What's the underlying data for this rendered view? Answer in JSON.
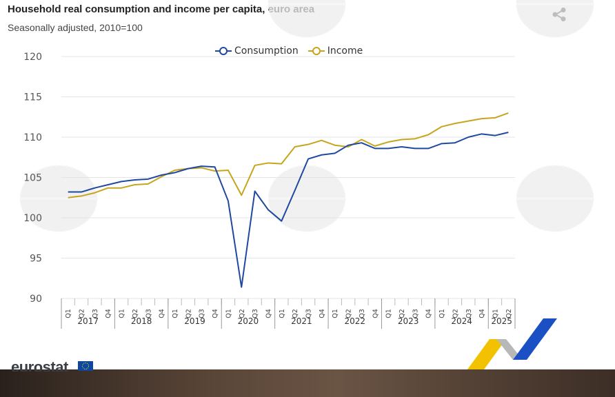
{
  "header": {
    "title": "Household real consumption and income per capita, euro area",
    "subtitle": "Seasonally adjusted, 2010=100"
  },
  "share_icon": "share-icon",
  "brand": {
    "eurostat_label": "eurostat"
  },
  "colors": {
    "consumption": "#1f48a0",
    "income": "#c8a41c",
    "grid": "#e4e4e4",
    "axis_text": "#555555",
    "watermark": "#dedede"
  },
  "chart_data": {
    "type": "line",
    "title": "Household real consumption and income per capita, euro area",
    "subtitle": "Seasonally adjusted, 2010=100",
    "legend_position": "top-center",
    "grid": true,
    "ylim": [
      90,
      120
    ],
    "yticks": [
      "90",
      "95",
      "100",
      "105",
      "110",
      "115",
      "120"
    ],
    "years": [
      "2017",
      "2018",
      "2019",
      "2020",
      "2021",
      "2022",
      "2023",
      "2024",
      "2025"
    ],
    "quarters_per_year": [
      4,
      4,
      4,
      4,
      4,
      4,
      4,
      4,
      2
    ],
    "categories": [
      "Q1",
      "Q2",
      "Q3",
      "Q4",
      "Q1",
      "Q2",
      "Q3",
      "Q4",
      "Q1",
      "Q2",
      "Q3",
      "Q4",
      "Q1",
      "Q2",
      "Q3",
      "Q4",
      "Q1",
      "Q2",
      "Q3",
      "Q4",
      "Q1",
      "Q2",
      "Q3",
      "Q4",
      "Q1",
      "Q2",
      "Q3",
      "Q4",
      "Q1",
      "Q2",
      "Q3",
      "Q4",
      "Q1",
      "Q2"
    ],
    "series": [
      {
        "name": "Consumption",
        "values": [
          103.2,
          103.2,
          103.7,
          104.1,
          104.5,
          104.7,
          104.8,
          105.3,
          105.6,
          106.1,
          106.4,
          106.3,
          102.1,
          91.4,
          103.3,
          101.0,
          99.6,
          103.4,
          107.3,
          107.8,
          108.0,
          109.0,
          109.3,
          108.6,
          108.6,
          108.8,
          108.6,
          108.6,
          109.2,
          109.3,
          110.0,
          110.4,
          110.2,
          110.6
        ]
      },
      {
        "name": "Income",
        "values": [
          102.5,
          102.7,
          103.1,
          103.7,
          103.7,
          104.1,
          104.2,
          105.1,
          105.9,
          106.1,
          106.2,
          105.8,
          105.9,
          102.8,
          106.5,
          106.8,
          106.7,
          108.8,
          109.1,
          109.6,
          109.0,
          108.8,
          109.7,
          108.9,
          109.4,
          109.7,
          109.8,
          110.3,
          111.3,
          111.7,
          112.0,
          112.3,
          112.4,
          113.0
        ]
      }
    ]
  }
}
